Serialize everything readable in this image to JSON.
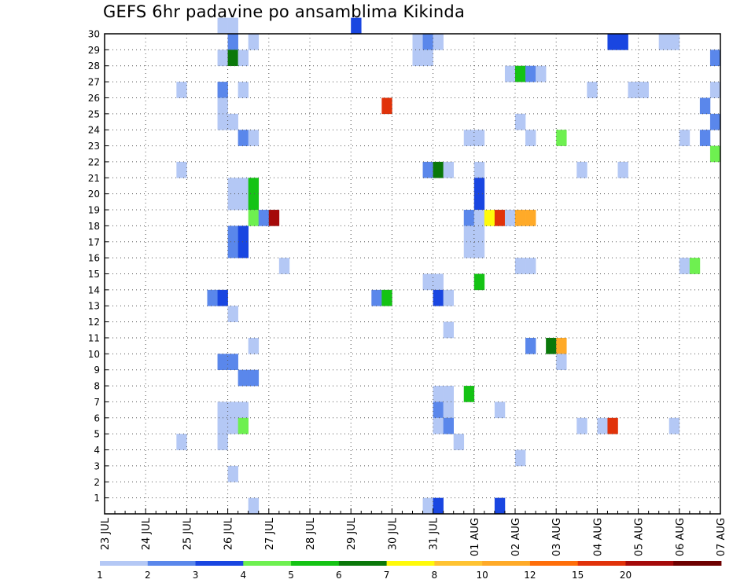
{
  "title": "GEFS 6hr padavine po ansamblima Kikinda",
  "chart_data": {
    "type": "heatmap",
    "title": "GEFS 6hr padavine po ansamblima Kikinda",
    "xlabel": "",
    "ylabel": "",
    "x_unit": "6-hour step",
    "x_range": [
      0,
      60
    ],
    "y_range": [
      0,
      30
    ],
    "grid": true,
    "y_ticks": [
      "1",
      "2",
      "3",
      "4",
      "5",
      "6",
      "7",
      "8",
      "9",
      "10",
      "11",
      "12",
      "13",
      "14",
      "15",
      "16",
      "17",
      "18",
      "19",
      "20",
      "21",
      "22",
      "23",
      "24",
      "25",
      "26",
      "27",
      "28",
      "29",
      "30"
    ],
    "x_tick_labels": [
      "23 JUL",
      "24 JUL",
      "25 JUL",
      "26 JUL",
      "27 JUL",
      "28 JUL",
      "29 JUL",
      "30 JUL",
      "31 JUL",
      "01 AUG",
      "02 AUG",
      "03 AUG",
      "04 AUG",
      "05 AUG",
      "06 AUG",
      "07 AUG"
    ],
    "color_scale": {
      "bins": [
        {
          "label": "1",
          "color": "#b4c8f5"
        },
        {
          "label": "2",
          "color": "#5a87eb"
        },
        {
          "label": "3",
          "color": "#1946e1"
        },
        {
          "label": "4",
          "color": "#6ef050"
        },
        {
          "label": "5",
          "color": "#14c314"
        },
        {
          "label": "6",
          "color": "#0a780a"
        },
        {
          "label": "7",
          "color": "#fffa0a"
        },
        {
          "label": "8",
          "color": "#ffc332"
        },
        {
          "label": "10",
          "color": "#ffaa28"
        },
        {
          "label": "12",
          "color": "#ff6e0a"
        },
        {
          "label": "15",
          "color": "#e1320a"
        },
        {
          "label": "20",
          "color": "#a50a0a"
        },
        {
          "label": "",
          "color": "#6e0000"
        }
      ]
    },
    "cells": [
      [
        11,
        30,
        0
      ],
      [
        12,
        30,
        0
      ],
      [
        24,
        30,
        2
      ],
      [
        12,
        29,
        1
      ],
      [
        14,
        29,
        0
      ],
      [
        30,
        29,
        0
      ],
      [
        31,
        29,
        1
      ],
      [
        32,
        29,
        0
      ],
      [
        49,
        29,
        2
      ],
      [
        50,
        29,
        2
      ],
      [
        54,
        29,
        0
      ],
      [
        55,
        29,
        0
      ],
      [
        11,
        28,
        0
      ],
      [
        12,
        28,
        5
      ],
      [
        13,
        28,
        0
      ],
      [
        30,
        28,
        0
      ],
      [
        31,
        28,
        0
      ],
      [
        59,
        28,
        1
      ],
      [
        39,
        27,
        0
      ],
      [
        40,
        27,
        4
      ],
      [
        41,
        27,
        1
      ],
      [
        42,
        27,
        0
      ],
      [
        7,
        26,
        0
      ],
      [
        11,
        26,
        1
      ],
      [
        13,
        26,
        0
      ],
      [
        47,
        26,
        0
      ],
      [
        51,
        26,
        0
      ],
      [
        52,
        26,
        0
      ],
      [
        59,
        26,
        0
      ],
      [
        11,
        25,
        0
      ],
      [
        27,
        25,
        10
      ],
      [
        58,
        25,
        1
      ],
      [
        11,
        24,
        0
      ],
      [
        12,
        24,
        0
      ],
      [
        40,
        24,
        0
      ],
      [
        59,
        24,
        1
      ],
      [
        13,
        23,
        1
      ],
      [
        14,
        23,
        0
      ],
      [
        35,
        23,
        0
      ],
      [
        36,
        23,
        0
      ],
      [
        41,
        23,
        0
      ],
      [
        44,
        23,
        3
      ],
      [
        56,
        23,
        0
      ],
      [
        58,
        23,
        1
      ],
      [
        59,
        22,
        3
      ],
      [
        7,
        21,
        0
      ],
      [
        31,
        21,
        1
      ],
      [
        32,
        21,
        5
      ],
      [
        33,
        21,
        0
      ],
      [
        36,
        21,
        0
      ],
      [
        46,
        21,
        0
      ],
      [
        50,
        21,
        0
      ],
      [
        12,
        20,
        0
      ],
      [
        13,
        20,
        0
      ],
      [
        14,
        20,
        4
      ],
      [
        36,
        20,
        2
      ],
      [
        12,
        19,
        0
      ],
      [
        13,
        19,
        0
      ],
      [
        14,
        19,
        4
      ],
      [
        36,
        19,
        2
      ],
      [
        14,
        18,
        3
      ],
      [
        15,
        18,
        1
      ],
      [
        16,
        18,
        11
      ],
      [
        35,
        18,
        1
      ],
      [
        36,
        18,
        0
      ],
      [
        37,
        18,
        6
      ],
      [
        38,
        18,
        10
      ],
      [
        39,
        18,
        0
      ],
      [
        40,
        18,
        8
      ],
      [
        41,
        18,
        8
      ],
      [
        12,
        17,
        1
      ],
      [
        13,
        17,
        2
      ],
      [
        35,
        17,
        0
      ],
      [
        36,
        17,
        0
      ],
      [
        12,
        16,
        1
      ],
      [
        13,
        16,
        2
      ],
      [
        35,
        16,
        0
      ],
      [
        36,
        16,
        0
      ],
      [
        17,
        15,
        0
      ],
      [
        40,
        15,
        0
      ],
      [
        41,
        15,
        0
      ],
      [
        56,
        15,
        0
      ],
      [
        57,
        15,
        3
      ],
      [
        31,
        14,
        0
      ],
      [
        32,
        14,
        0
      ],
      [
        36,
        14,
        4
      ],
      [
        10,
        13,
        1
      ],
      [
        11,
        13,
        2
      ],
      [
        26,
        13,
        1
      ],
      [
        27,
        13,
        4
      ],
      [
        32,
        13,
        2
      ],
      [
        33,
        13,
        0
      ],
      [
        12,
        12,
        0
      ],
      [
        33,
        11,
        0
      ],
      [
        14,
        10,
        0
      ],
      [
        41,
        10,
        1
      ],
      [
        43,
        10,
        5
      ],
      [
        44,
        10,
        8
      ],
      [
        11,
        9,
        1
      ],
      [
        12,
        9,
        1
      ],
      [
        44,
        9,
        0
      ],
      [
        13,
        8,
        1
      ],
      [
        14,
        8,
        1
      ],
      [
        32,
        7,
        0
      ],
      [
        33,
        7,
        0
      ],
      [
        35,
        7,
        4
      ],
      [
        11,
        6,
        0
      ],
      [
        12,
        6,
        0
      ],
      [
        13,
        6,
        0
      ],
      [
        32,
        6,
        1
      ],
      [
        33,
        6,
        0
      ],
      [
        38,
        6,
        0
      ],
      [
        11,
        5,
        0
      ],
      [
        12,
        5,
        0
      ],
      [
        13,
        5,
        3
      ],
      [
        32,
        5,
        0
      ],
      [
        33,
        5,
        1
      ],
      [
        46,
        5,
        0
      ],
      [
        48,
        5,
        0
      ],
      [
        49,
        5,
        10
      ],
      [
        55,
        5,
        0
      ],
      [
        7,
        4,
        0
      ],
      [
        11,
        4,
        0
      ],
      [
        34,
        4,
        0
      ],
      [
        40,
        3,
        0
      ],
      [
        12,
        2,
        0
      ],
      [
        14,
        0,
        0
      ],
      [
        31,
        0,
        0
      ],
      [
        32,
        0,
        2
      ],
      [
        38,
        0,
        2
      ]
    ]
  }
}
